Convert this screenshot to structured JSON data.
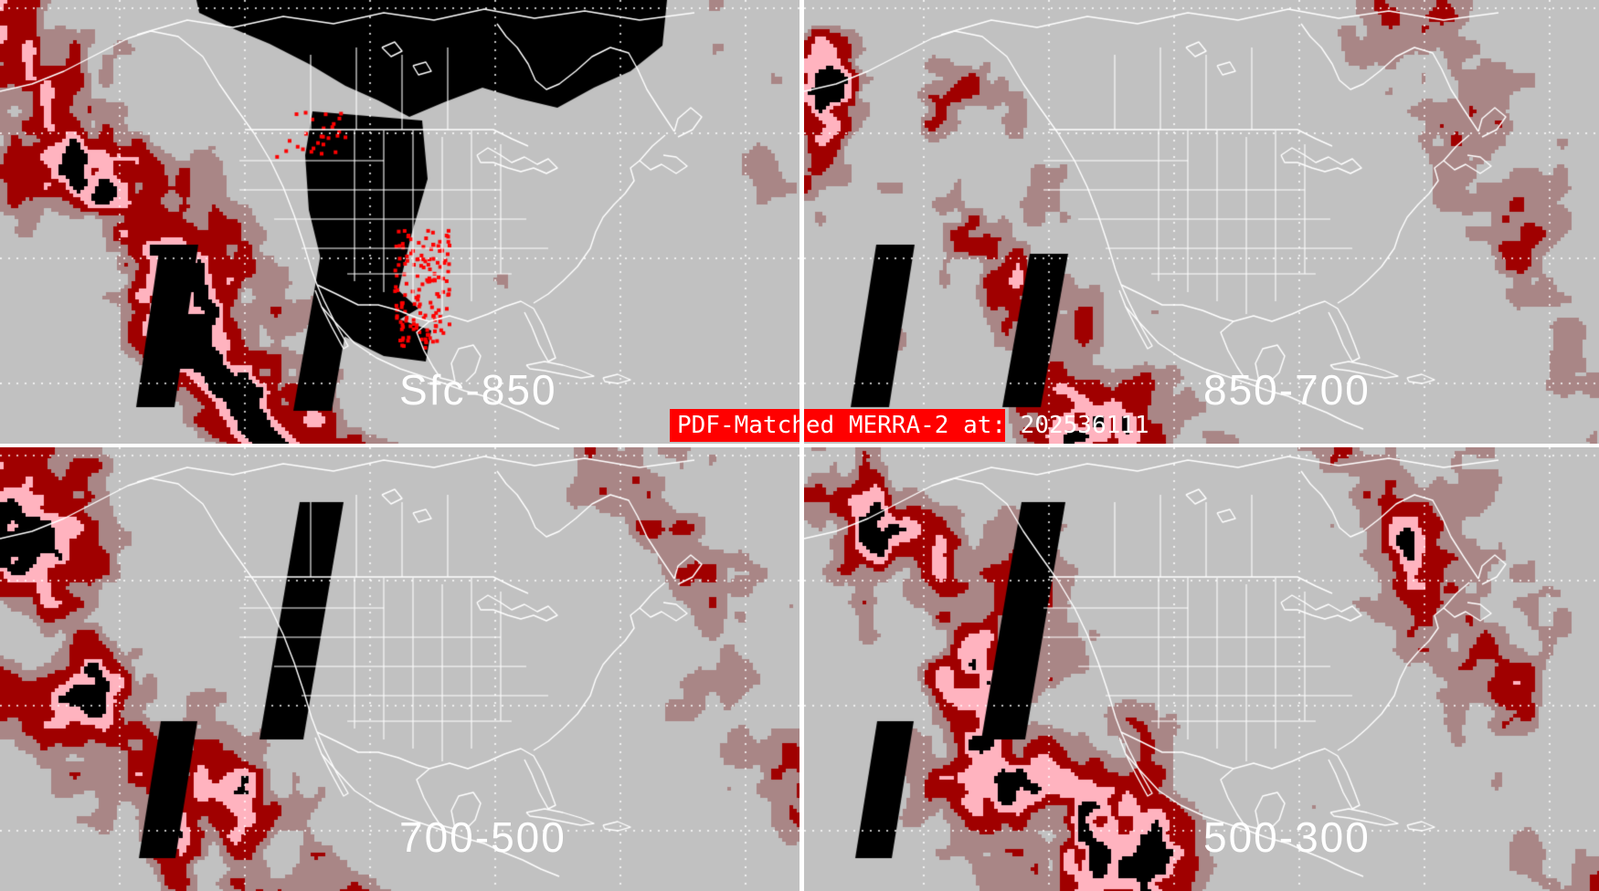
{
  "banner": {
    "text": "PDF-Matched MERRA-2 at: 202536111",
    "background": "#ff0000",
    "color": "#ffffff"
  },
  "panels": [
    {
      "label": "Sfc-850"
    },
    {
      "label": "850-700"
    },
    {
      "label": "700-500"
    },
    {
      "label": "500-300"
    }
  ],
  "map": {
    "region": "North America",
    "outline_color": "#ffffff",
    "graticule_style": "dotted",
    "divider_color": "#ffffff"
  },
  "palette": {
    "background_gray": "#c1c1c1",
    "shade_rosy": "#a98686",
    "shade_dark_red": "#a00000",
    "shade_bright_red": "#fe0000",
    "shade_pink": "#ffb3bf",
    "shade_black": "#000000",
    "label_color": "#ffffff"
  }
}
